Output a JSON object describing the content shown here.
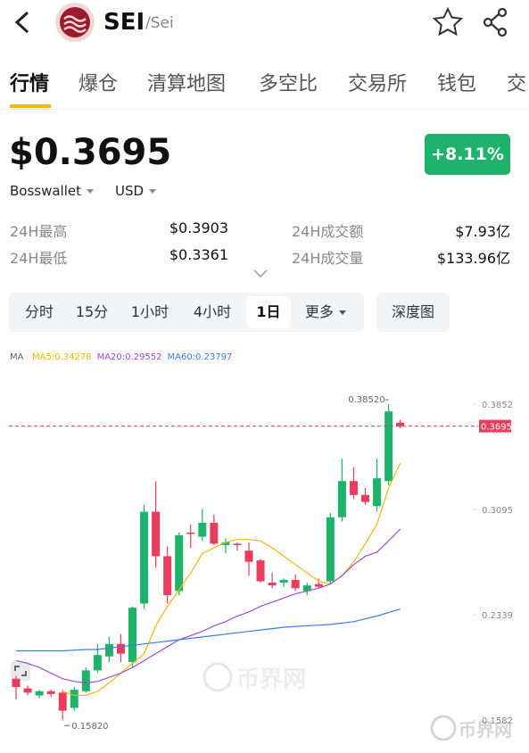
{
  "header": {
    "symbol": "SEI",
    "pair": "/Sei"
  },
  "tabs": [
    "行情",
    "爆仓",
    "清算地图",
    "多空比",
    "交易所",
    "钱包",
    "交"
  ],
  "price": {
    "value": "$0.3695",
    "change": "+8.11%",
    "source": "Bosswallet",
    "currency": "USD"
  },
  "stats": [
    [
      "24H最高",
      "$0.3903",
      "24H成交额",
      "$7.93亿"
    ],
    [
      "24H最低",
      "$0.3361",
      "24H成交量",
      "$133.96亿"
    ]
  ],
  "intervals": [
    "分时",
    "15分",
    "1小时",
    "4小时",
    "1日",
    "更多"
  ],
  "depth": "深度图",
  "watermark": "币界网",
  "chart_data": {
    "type": "candlestick",
    "ma_label": "MA",
    "legend": [
      "MA5:0.34278",
      "MA20:0.29552",
      "MA60:0.23797"
    ],
    "high_label": "0.38520",
    "low_label": "0.15820",
    "last_price": 0.3695,
    "ylim": [
      0.15,
      0.4
    ],
    "yticks": [
      0.3852,
      0.3095,
      0.2339,
      0.1582
    ],
    "up_color": "#1fb26b",
    "down_color": "#ea3d5d",
    "open": [
      0.188,
      0.181,
      0.176,
      0.179,
      0.178,
      0.167,
      0.179,
      0.194,
      0.204,
      0.213,
      0.2,
      0.242,
      0.308,
      0.276,
      0.251,
      0.293,
      0.29,
      0.3,
      0.284,
      0.285,
      0.28,
      0.273,
      0.257,
      0.257,
      0.259,
      0.251,
      0.256,
      0.258,
      0.304,
      0.33,
      0.32,
      0.312,
      0.33,
      0.372
    ],
    "high": [
      0.19,
      0.183,
      0.18,
      0.18,
      0.18,
      0.182,
      0.196,
      0.213,
      0.218,
      0.22,
      0.24,
      0.313,
      0.33,
      0.283,
      0.293,
      0.299,
      0.31,
      0.306,
      0.289,
      0.286,
      0.286,
      0.274,
      0.264,
      0.26,
      0.263,
      0.257,
      0.26,
      0.307,
      0.346,
      0.34,
      0.325,
      0.346,
      0.3852,
      0.374
    ],
    "low": [
      0.173,
      0.176,
      0.174,
      0.175,
      0.1582,
      0.165,
      0.178,
      0.192,
      0.2,
      0.2,
      0.196,
      0.238,
      0.268,
      0.242,
      0.248,
      0.282,
      0.287,
      0.284,
      0.278,
      0.28,
      0.262,
      0.257,
      0.253,
      0.254,
      0.251,
      0.248,
      0.253,
      0.256,
      0.301,
      0.317,
      0.313,
      0.308,
      0.327,
      0.368
    ],
    "close": [
      0.182,
      0.178,
      0.179,
      0.177,
      0.165,
      0.18,
      0.194,
      0.205,
      0.213,
      0.206,
      0.239,
      0.308,
      0.276,
      0.248,
      0.291,
      0.292,
      0.3,
      0.285,
      0.286,
      0.284,
      0.272,
      0.258,
      0.255,
      0.259,
      0.253,
      0.255,
      0.254,
      0.304,
      0.33,
      0.32,
      0.315,
      0.332,
      0.38,
      0.3695
    ],
    "series": [
      {
        "name": "MA5",
        "color": "#f0b90b",
        "values": [
          null,
          null,
          null,
          null,
          0.179,
          0.176,
          0.176,
          0.179,
          0.185,
          0.192,
          0.199,
          0.206,
          0.226,
          0.24,
          0.252,
          0.264,
          0.278,
          0.282,
          0.286,
          0.288,
          0.288,
          0.287,
          0.282,
          0.276,
          0.27,
          0.264,
          0.258,
          0.256,
          0.262,
          0.272,
          0.285,
          0.299,
          0.325,
          0.3428
        ]
      },
      {
        "name": "MA20",
        "color": "#9b4de0",
        "values": [
          0.201,
          0.199,
          0.196,
          0.192,
          0.188,
          0.186,
          0.185,
          0.186,
          0.189,
          0.192,
          0.196,
          0.201,
          0.206,
          0.211,
          0.216,
          0.219,
          0.222,
          0.226,
          0.229,
          0.233,
          0.236,
          0.24,
          0.243,
          0.246,
          0.249,
          0.251,
          0.253,
          0.256,
          0.262,
          0.27,
          0.276,
          0.279,
          0.287,
          0.2955
        ]
      },
      {
        "name": "MA60",
        "color": "#3b7de0",
        "values": [
          0.208,
          0.208,
          0.208,
          0.208,
          0.208,
          0.2085,
          0.209,
          0.209,
          0.21,
          0.211,
          0.212,
          0.213,
          0.214,
          0.215,
          0.216,
          0.217,
          0.218,
          0.219,
          0.22,
          0.221,
          0.222,
          0.223,
          0.224,
          0.225,
          0.2255,
          0.226,
          0.2265,
          0.227,
          0.228,
          0.229,
          0.231,
          0.233,
          0.2355,
          0.238
        ]
      }
    ]
  }
}
